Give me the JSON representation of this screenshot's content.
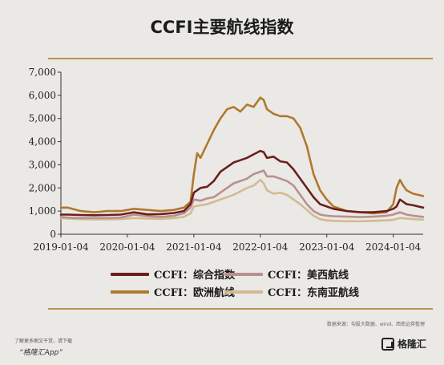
{
  "header": {
    "title": "CCFI主要航线指数"
  },
  "chart_data": {
    "type": "line",
    "title": "CCFI主要航线指数",
    "xlabel": "",
    "ylabel": "",
    "ylim": [
      0,
      7000
    ],
    "yticks": [
      "0",
      "1,000",
      "2,000",
      "3,000",
      "4,000",
      "5,000",
      "6,000",
      "7,000"
    ],
    "xticks": [
      "2019-01-04",
      "2020-01-04",
      "2021-01-04",
      "2022-01-04",
      "2023-01-04",
      "2024-01-04"
    ],
    "xlim": [
      2019.0,
      2024.45
    ],
    "grid": false,
    "legend_position": "bottom",
    "series": [
      {
        "name": "CCFI：综合指数",
        "color": "#6b1f1f",
        "x": [
          2019.0,
          2019.1,
          2019.3,
          2019.5,
          2019.7,
          2019.9,
          2020.1,
          2020.3,
          2020.5,
          2020.7,
          2020.85,
          2020.95,
          2021.0,
          2021.1,
          2021.2,
          2021.3,
          2021.4,
          2021.5,
          2021.6,
          2021.7,
          2021.8,
          2021.9,
          2022.0,
          2022.05,
          2022.1,
          2022.2,
          2022.3,
          2022.4,
          2022.5,
          2022.6,
          2022.7,
          2022.8,
          2022.9,
          2023.0,
          2023.1,
          2023.3,
          2023.5,
          2023.7,
          2023.9,
          2024.0,
          2024.05,
          2024.1,
          2024.15,
          2024.2,
          2024.3,
          2024.45
        ],
        "values": [
          850,
          850,
          830,
          820,
          830,
          850,
          950,
          860,
          870,
          920,
          1000,
          1300,
          1800,
          2000,
          2050,
          2300,
          2700,
          2900,
          3100,
          3200,
          3300,
          3450,
          3600,
          3550,
          3300,
          3350,
          3150,
          3100,
          2800,
          2400,
          2000,
          1600,
          1300,
          1200,
          1100,
          1000,
          950,
          950,
          1000,
          1100,
          1200,
          1500,
          1400,
          1300,
          1250,
          1150
        ]
      },
      {
        "name": "CCFI：欧洲航线",
        "color": "#b0782f",
        "x": [
          2019.0,
          2019.1,
          2019.3,
          2019.5,
          2019.7,
          2019.9,
          2020.1,
          2020.3,
          2020.5,
          2020.7,
          2020.85,
          2020.95,
          2021.0,
          2021.05,
          2021.1,
          2021.2,
          2021.3,
          2021.4,
          2021.5,
          2021.6,
          2021.7,
          2021.8,
          2021.9,
          2022.0,
          2022.05,
          2022.1,
          2022.2,
          2022.3,
          2022.4,
          2022.5,
          2022.6,
          2022.7,
          2022.8,
          2022.9,
          2023.0,
          2023.1,
          2023.3,
          2023.5,
          2023.7,
          2023.9,
          2024.0,
          2024.05,
          2024.1,
          2024.15,
          2024.2,
          2024.3,
          2024.45
        ],
        "values": [
          1150,
          1150,
          1000,
          950,
          1000,
          1000,
          1100,
          1050,
          1000,
          1050,
          1150,
          1400,
          2600,
          3500,
          3300,
          3900,
          4500,
          5000,
          5400,
          5500,
          5300,
          5600,
          5500,
          5900,
          5800,
          5400,
          5200,
          5100,
          5100,
          5000,
          4600,
          3800,
          2600,
          1900,
          1500,
          1200,
          1000,
          950,
          900,
          950,
          1300,
          2000,
          2350,
          2100,
          1900,
          1750,
          1650
        ]
      },
      {
        "name": "CCFI：美西航线",
        "color": "#b99090",
        "x": [
          2019.0,
          2019.1,
          2019.3,
          2019.5,
          2019.7,
          2019.9,
          2020.1,
          2020.3,
          2020.5,
          2020.7,
          2020.85,
          2020.95,
          2021.0,
          2021.1,
          2021.2,
          2021.3,
          2021.4,
          2021.5,
          2021.6,
          2021.7,
          2021.8,
          2021.9,
          2022.0,
          2022.05,
          2022.1,
          2022.2,
          2022.3,
          2022.4,
          2022.5,
          2022.6,
          2022.7,
          2022.8,
          2022.9,
          2023.0,
          2023.1,
          2023.3,
          2023.5,
          2023.7,
          2023.9,
          2024.0,
          2024.1,
          2024.2,
          2024.3,
          2024.45
        ],
        "values": [
          750,
          720,
          700,
          700,
          700,
          720,
          850,
          780,
          750,
          800,
          900,
          1150,
          1500,
          1450,
          1550,
          1600,
          1800,
          2000,
          2200,
          2300,
          2400,
          2600,
          2700,
          2750,
          2500,
          2500,
          2400,
          2300,
          2100,
          1700,
          1300,
          1000,
          850,
          800,
          780,
          760,
          740,
          760,
          800,
          850,
          950,
          850,
          800,
          750
        ]
      },
      {
        "name": "CCFI：东南亚航线",
        "color": "#d1bb92",
        "x": [
          2019.0,
          2019.1,
          2019.3,
          2019.5,
          2019.7,
          2019.9,
          2020.1,
          2020.3,
          2020.5,
          2020.7,
          2020.85,
          2020.95,
          2021.0,
          2021.1,
          2021.2,
          2021.3,
          2021.4,
          2021.5,
          2021.6,
          2021.7,
          2021.8,
          2021.9,
          2022.0,
          2022.05,
          2022.1,
          2022.2,
          2022.3,
          2022.4,
          2022.5,
          2022.6,
          2022.7,
          2022.8,
          2022.9,
          2023.0,
          2023.1,
          2023.3,
          2023.5,
          2023.7,
          2023.9,
          2024.0,
          2024.1,
          2024.2,
          2024.3,
          2024.45
        ],
        "values": [
          700,
          680,
          650,
          640,
          640,
          650,
          700,
          680,
          660,
          700,
          750,
          900,
          1200,
          1250,
          1300,
          1400,
          1500,
          1600,
          1700,
          1850,
          2000,
          2100,
          2350,
          2200,
          1900,
          1750,
          1800,
          1700,
          1500,
          1300,
          1050,
          800,
          650,
          600,
          580,
          560,
          560,
          580,
          600,
          620,
          700,
          680,
          650,
          630
        ]
      }
    ]
  },
  "source_note": "数据来源：勾股大数据、wind、西南证券整理",
  "footer": {
    "tip": "了解更多图文干货，请下载",
    "app": "“格隆汇App”",
    "brand": "格隆汇"
  }
}
